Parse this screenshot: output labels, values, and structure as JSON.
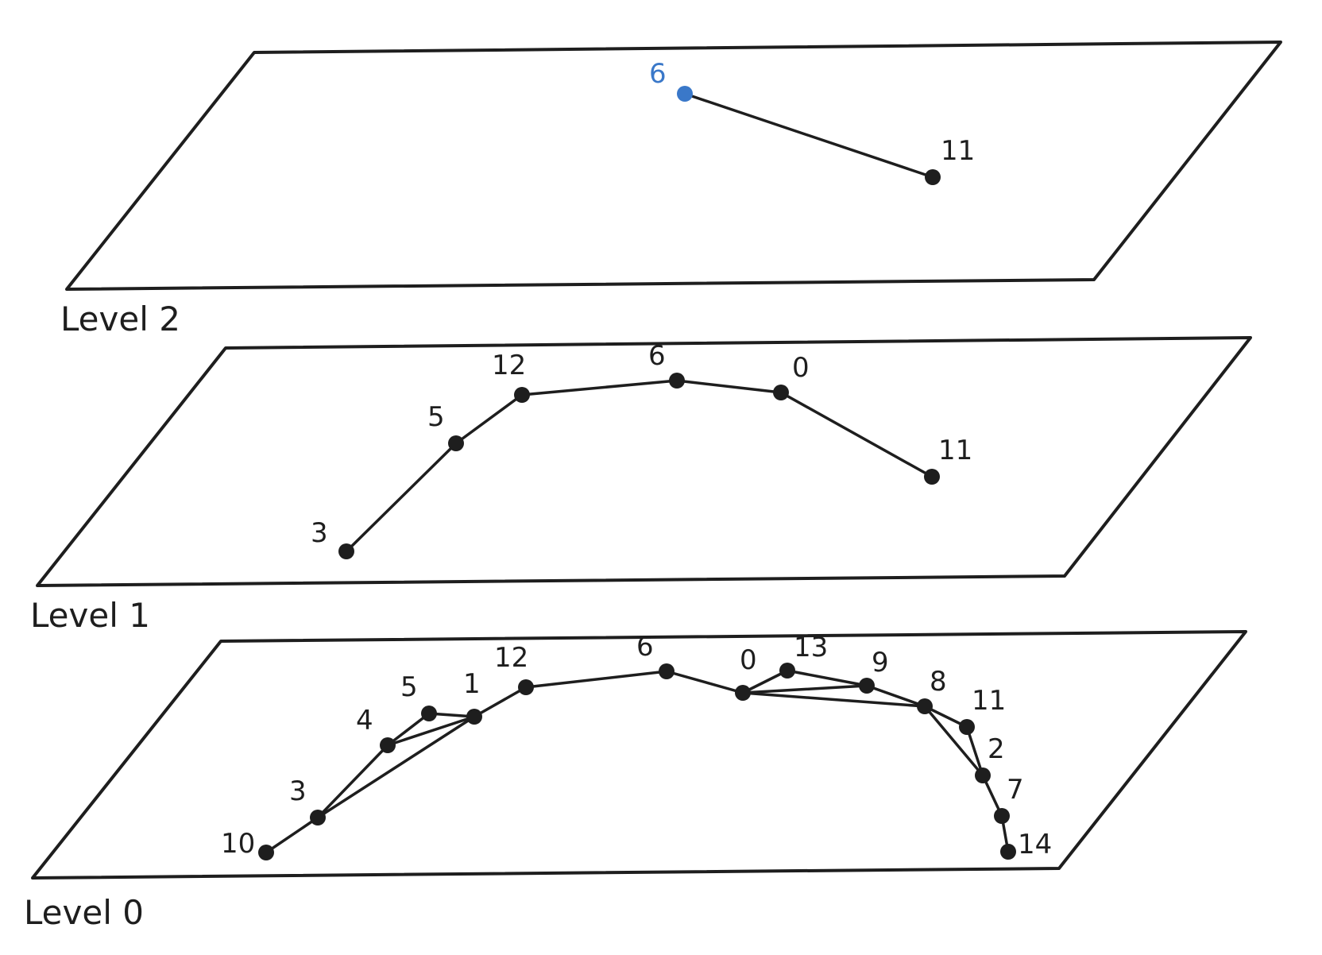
{
  "entry_color": "#3a78c9",
  "ink_color": "#1e1e1e",
  "levels": [
    {
      "label": "Level 2",
      "nodes": [
        {
          "id": "6",
          "label": "6",
          "entry": true
        },
        {
          "id": "11",
          "label": "11"
        }
      ],
      "edges": [
        [
          "6",
          "11"
        ]
      ]
    },
    {
      "label": "Level 1",
      "nodes": [
        {
          "id": "3",
          "label": "3"
        },
        {
          "id": "5",
          "label": "5"
        },
        {
          "id": "12",
          "label": "12"
        },
        {
          "id": "6",
          "label": "6"
        },
        {
          "id": "0",
          "label": "0"
        },
        {
          "id": "11",
          "label": "11"
        }
      ],
      "edges": [
        [
          "3",
          "5"
        ],
        [
          "5",
          "12"
        ],
        [
          "12",
          "6"
        ],
        [
          "6",
          "0"
        ],
        [
          "0",
          "11"
        ]
      ]
    },
    {
      "label": "Level 0",
      "nodes": [
        {
          "id": "10",
          "label": "10"
        },
        {
          "id": "3",
          "label": "3"
        },
        {
          "id": "4",
          "label": "4"
        },
        {
          "id": "5",
          "label": "5"
        },
        {
          "id": "1",
          "label": "1"
        },
        {
          "id": "12",
          "label": "12"
        },
        {
          "id": "6",
          "label": "6"
        },
        {
          "id": "0",
          "label": "0"
        },
        {
          "id": "13",
          "label": "13"
        },
        {
          "id": "9",
          "label": "9"
        },
        {
          "id": "8",
          "label": "8"
        },
        {
          "id": "11",
          "label": "11"
        },
        {
          "id": "2",
          "label": "2"
        },
        {
          "id": "7",
          "label": "7"
        },
        {
          "id": "14",
          "label": "14"
        }
      ],
      "edges": [
        [
          "10",
          "3"
        ],
        [
          "3",
          "4"
        ],
        [
          "3",
          "1"
        ],
        [
          "4",
          "5"
        ],
        [
          "4",
          "1"
        ],
        [
          "5",
          "1"
        ],
        [
          "1",
          "12"
        ],
        [
          "12",
          "6"
        ],
        [
          "6",
          "0"
        ],
        [
          "0",
          "13"
        ],
        [
          "0",
          "9"
        ],
        [
          "0",
          "8"
        ],
        [
          "13",
          "9"
        ],
        [
          "9",
          "8"
        ],
        [
          "8",
          "11"
        ],
        [
          "8",
          "2"
        ],
        [
          "11",
          "2"
        ],
        [
          "2",
          "7"
        ],
        [
          "7",
          "14"
        ]
      ]
    }
  ]
}
